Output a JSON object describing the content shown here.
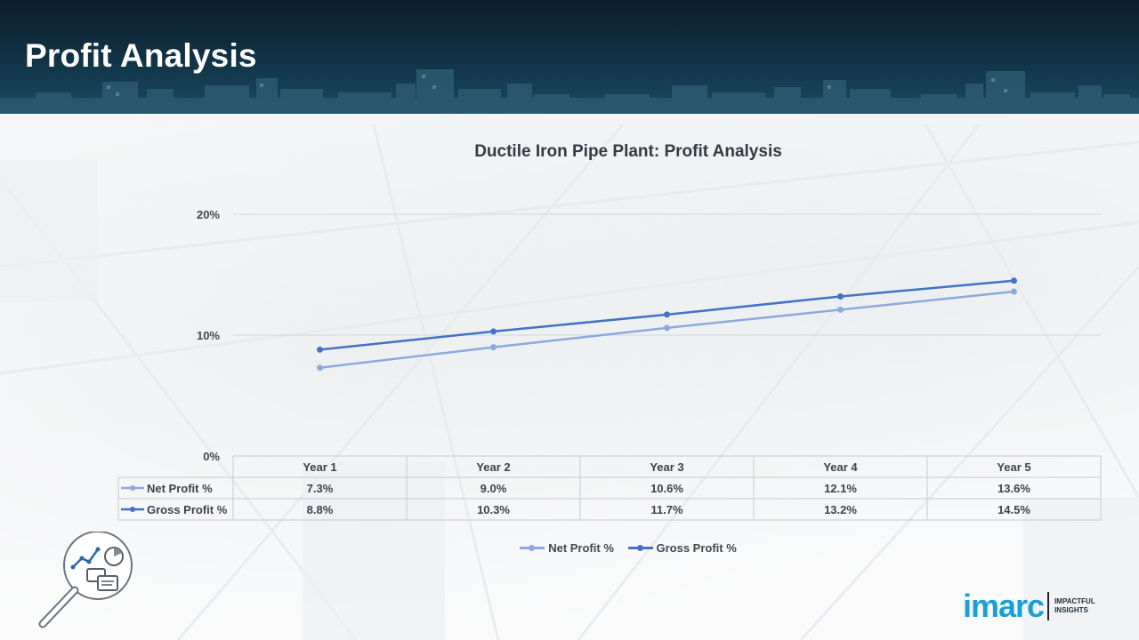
{
  "header": {
    "title": "Profit Analysis"
  },
  "colors": {
    "net": "#8ea9db",
    "gross": "#4472c4",
    "brand": "#1aa0d8"
  },
  "chart_data": {
    "type": "line",
    "title": "Ductile Iron Pipe Plant: Profit Analysis",
    "categories": [
      "Year 1",
      "Year 2",
      "Year 3",
      "Year 4",
      "Year 5"
    ],
    "series": [
      {
        "name": "Net Profit %",
        "values": [
          7.3,
          9.0,
          10.6,
          12.1,
          13.6
        ],
        "labels": [
          "7.3%",
          "9.0%",
          "10.6%",
          "12.1%",
          "13.6%"
        ]
      },
      {
        "name": "Gross Profit %",
        "values": [
          8.8,
          10.3,
          11.7,
          13.2,
          14.5
        ],
        "labels": [
          "8.8%",
          "10.3%",
          "11.7%",
          "13.2%",
          "14.5%"
        ]
      }
    ],
    "y_ticks": [
      {
        "value": 0,
        "label": "0%"
      },
      {
        "value": 10,
        "label": "10%"
      },
      {
        "value": 20,
        "label": "20%"
      }
    ],
    "ylim": [
      0,
      20
    ],
    "grid": true,
    "data_table": true,
    "legend_position": "bottom"
  },
  "logo": {
    "word": "imarc",
    "tagline": "IMPACTFUL INSIGHTS"
  },
  "icons": {
    "analysis": "magnifier-chart-icon"
  }
}
